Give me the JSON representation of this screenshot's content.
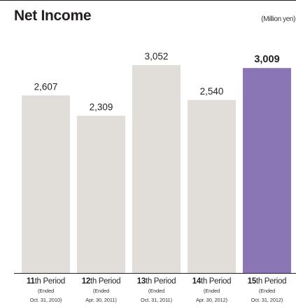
{
  "chart_data": {
    "type": "bar",
    "title": "Net Income",
    "unit": "(Million yen)",
    "categories": [
      {
        "num": "11",
        "suffix": "th Period",
        "note1": "(Ended",
        "note2": "Oct. 31, 2010)"
      },
      {
        "num": "12",
        "suffix": "th Period",
        "note1": "(Ended",
        "note2": "Apr. 30, 2011)"
      },
      {
        "num": "13",
        "suffix": "th Period",
        "note1": "(Ended",
        "note2": "Oct. 31, 2011)"
      },
      {
        "num": "14",
        "suffix": "th Period",
        "note1": "(Ended",
        "note2": "Apr. 30, 2012)"
      },
      {
        "num": "15",
        "suffix": "th Period",
        "note1": "(Ended",
        "note2": "Oct. 31, 2012)"
      }
    ],
    "values": [
      2607,
      2309,
      3052,
      2540,
      3009
    ],
    "value_labels": [
      "2,607",
      "2,309",
      "3,052",
      "2,540",
      "3,009"
    ],
    "highlight_index": 4,
    "colors": {
      "bar": "#e1deda",
      "highlight": "#8a76b4",
      "text": "#231f20"
    },
    "ylim": [
      0,
      3052
    ],
    "grid": false
  }
}
